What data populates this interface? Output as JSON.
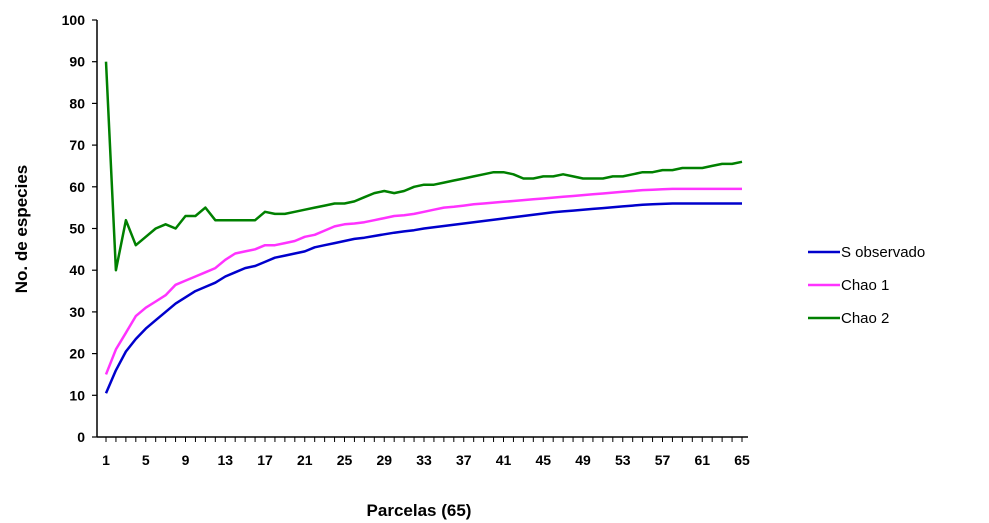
{
  "chart_data": {
    "type": "line",
    "title": "",
    "xlabel": "Parcelas (65)",
    "ylabel": "No. de especies",
    "xlim": [
      1,
      65
    ],
    "ylim": [
      0,
      100
    ],
    "yticks": [
      0,
      10,
      20,
      30,
      40,
      50,
      60,
      70,
      80,
      90,
      100
    ],
    "xtick_labels": [
      1,
      5,
      9,
      13,
      17,
      21,
      25,
      29,
      33,
      37,
      41,
      45,
      49,
      53,
      57,
      61,
      65
    ],
    "grid": false,
    "legend_position": "right",
    "x": [
      1,
      2,
      3,
      4,
      5,
      6,
      7,
      8,
      9,
      10,
      11,
      12,
      13,
      14,
      15,
      16,
      17,
      18,
      19,
      20,
      21,
      22,
      23,
      24,
      25,
      26,
      27,
      28,
      29,
      30,
      31,
      32,
      33,
      34,
      35,
      36,
      37,
      38,
      39,
      40,
      41,
      42,
      43,
      44,
      45,
      46,
      47,
      48,
      49,
      50,
      51,
      52,
      53,
      54,
      55,
      56,
      57,
      58,
      59,
      60,
      61,
      62,
      63,
      64,
      65
    ],
    "series": [
      {
        "name": "S observado",
        "color": "#0000cc",
        "values": [
          10.5,
          16,
          20.5,
          23.5,
          26,
          28,
          30,
          32,
          33.5,
          35,
          36,
          37,
          38.5,
          39.5,
          40.5,
          41,
          42,
          43,
          43.5,
          44,
          44.5,
          45.5,
          46,
          46.5,
          47,
          47.5,
          47.8,
          48.2,
          48.6,
          49,
          49.3,
          49.6,
          50,
          50.3,
          50.6,
          50.9,
          51.2,
          51.5,
          51.8,
          52.1,
          52.4,
          52.7,
          53,
          53.3,
          53.6,
          53.9,
          54.1,
          54.3,
          54.5,
          54.7,
          54.9,
          55.1,
          55.3,
          55.5,
          55.7,
          55.8,
          55.9,
          56,
          56,
          56,
          56,
          56,
          56,
          56,
          56
        ]
      },
      {
        "name": "Chao 1",
        "color": "#ff33ff",
        "values": [
          15,
          21,
          25,
          29,
          31,
          32.5,
          34,
          36.5,
          37.5,
          38.5,
          39.5,
          40.5,
          42.5,
          44,
          44.5,
          45,
          46,
          46,
          46.5,
          47,
          48,
          48.5,
          49.5,
          50.5,
          51,
          51.2,
          51.5,
          52,
          52.5,
          53,
          53.2,
          53.5,
          54,
          54.5,
          55,
          55.2,
          55.5,
          55.8,
          56,
          56.2,
          56.4,
          56.6,
          56.8,
          57,
          57.2,
          57.4,
          57.6,
          57.8,
          58,
          58.2,
          58.4,
          58.6,
          58.8,
          59,
          59.2,
          59.3,
          59.4,
          59.5,
          59.5,
          59.5,
          59.5,
          59.5,
          59.5,
          59.5,
          59.5
        ]
      },
      {
        "name": "Chao 2",
        "color": "#008000",
        "values": [
          90,
          40,
          52,
          46,
          48,
          50,
          51,
          50,
          53,
          53,
          55,
          52,
          52,
          52,
          52,
          52,
          54,
          53.5,
          53.5,
          54,
          54.5,
          55,
          55.5,
          56,
          56,
          56.5,
          57.5,
          58.5,
          59,
          58.5,
          59,
          60,
          60.5,
          60.5,
          61,
          61.5,
          62,
          62.5,
          63,
          63.5,
          63.5,
          63,
          62,
          62,
          62.5,
          62.5,
          63,
          62.5,
          62,
          62,
          62,
          62.5,
          62.5,
          63,
          63.5,
          63.5,
          64,
          64,
          64.5,
          64.5,
          64.5,
          65,
          65.5,
          65.5,
          66
        ]
      }
    ]
  }
}
